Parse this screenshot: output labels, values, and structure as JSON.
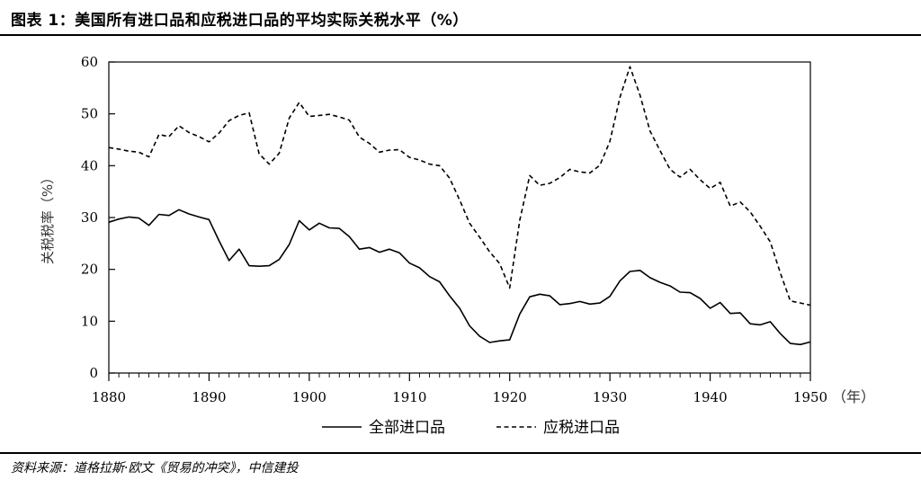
{
  "header": {
    "title": "图表 1：美国所有进口品和应税进口品的平均实际关税水平（%）"
  },
  "footer": {
    "source": "资料来源：道格拉斯·欧文《贸易的冲突》，中信建投"
  },
  "chart_data": {
    "type": "line",
    "title": "",
    "ylabel": "关税税率（%）",
    "xlabel": "（年）",
    "xlim": [
      1880,
      1950
    ],
    "ylim": [
      0,
      60
    ],
    "xticks": [
      1880,
      1890,
      1900,
      1910,
      1920,
      1930,
      1940,
      1950
    ],
    "yticks": [
      0,
      10,
      20,
      30,
      40,
      50,
      60
    ],
    "grid": false,
    "legend_position": "bottom",
    "series": [
      {
        "name": "全部进口品",
        "style": "solid",
        "color": "#000000",
        "points": [
          [
            1880,
            29.1
          ],
          [
            1881,
            29.7
          ],
          [
            1882,
            30.1
          ],
          [
            1883,
            29.9
          ],
          [
            1884,
            28.5
          ],
          [
            1885,
            30.6
          ],
          [
            1886,
            30.4
          ],
          [
            1887,
            31.5
          ],
          [
            1888,
            30.7
          ],
          [
            1889,
            30.1
          ],
          [
            1890,
            29.6
          ],
          [
            1891,
            25.5
          ],
          [
            1892,
            21.7
          ],
          [
            1893,
            23.9
          ],
          [
            1894,
            20.7
          ],
          [
            1895,
            20.6
          ],
          [
            1896,
            20.7
          ],
          [
            1897,
            21.9
          ],
          [
            1898,
            24.8
          ],
          [
            1899,
            29.4
          ],
          [
            1900,
            27.6
          ],
          [
            1901,
            28.9
          ],
          [
            1902,
            28.0
          ],
          [
            1903,
            27.9
          ],
          [
            1904,
            26.3
          ],
          [
            1905,
            23.9
          ],
          [
            1906,
            24.2
          ],
          [
            1907,
            23.3
          ],
          [
            1908,
            23.9
          ],
          [
            1909,
            23.2
          ],
          [
            1910,
            21.2
          ],
          [
            1911,
            20.3
          ],
          [
            1912,
            18.6
          ],
          [
            1913,
            17.6
          ],
          [
            1914,
            14.9
          ],
          [
            1915,
            12.5
          ],
          [
            1916,
            9.1
          ],
          [
            1917,
            7.1
          ],
          [
            1918,
            5.9
          ],
          [
            1919,
            6.2
          ],
          [
            1920,
            6.4
          ],
          [
            1921,
            11.4
          ],
          [
            1922,
            14.7
          ],
          [
            1923,
            15.2
          ],
          [
            1924,
            14.9
          ],
          [
            1925,
            13.2
          ],
          [
            1926,
            13.4
          ],
          [
            1927,
            13.8
          ],
          [
            1928,
            13.3
          ],
          [
            1929,
            13.5
          ],
          [
            1930,
            14.8
          ],
          [
            1931,
            17.8
          ],
          [
            1932,
            19.6
          ],
          [
            1933,
            19.8
          ],
          [
            1934,
            18.4
          ],
          [
            1935,
            17.5
          ],
          [
            1936,
            16.8
          ],
          [
            1937,
            15.6
          ],
          [
            1938,
            15.5
          ],
          [
            1939,
            14.4
          ],
          [
            1940,
            12.5
          ],
          [
            1941,
            13.6
          ],
          [
            1942,
            11.5
          ],
          [
            1943,
            11.6
          ],
          [
            1944,
            9.5
          ],
          [
            1945,
            9.3
          ],
          [
            1946,
            9.9
          ],
          [
            1947,
            7.6
          ],
          [
            1948,
            5.7
          ],
          [
            1949,
            5.5
          ],
          [
            1950,
            6.0
          ]
        ]
      },
      {
        "name": "应税进口品",
        "style": "dashed",
        "color": "#000000",
        "points": [
          [
            1880,
            43.5
          ],
          [
            1881,
            43.2
          ],
          [
            1882,
            42.8
          ],
          [
            1883,
            42.6
          ],
          [
            1884,
            41.7
          ],
          [
            1885,
            46.0
          ],
          [
            1886,
            45.6
          ],
          [
            1887,
            47.7
          ],
          [
            1888,
            46.4
          ],
          [
            1889,
            45.6
          ],
          [
            1890,
            44.6
          ],
          [
            1891,
            46.3
          ],
          [
            1892,
            48.7
          ],
          [
            1893,
            49.7
          ],
          [
            1894,
            50.2
          ],
          [
            1895,
            42.3
          ],
          [
            1896,
            40.3
          ],
          [
            1897,
            42.4
          ],
          [
            1898,
            49.2
          ],
          [
            1899,
            52.2
          ],
          [
            1900,
            49.5
          ],
          [
            1901,
            49.7
          ],
          [
            1902,
            49.9
          ],
          [
            1903,
            49.4
          ],
          [
            1904,
            48.8
          ],
          [
            1905,
            45.5
          ],
          [
            1906,
            44.3
          ],
          [
            1907,
            42.6
          ],
          [
            1908,
            43.0
          ],
          [
            1909,
            43.1
          ],
          [
            1910,
            41.6
          ],
          [
            1911,
            41.1
          ],
          [
            1912,
            40.3
          ],
          [
            1913,
            40.0
          ],
          [
            1914,
            37.6
          ],
          [
            1915,
            33.4
          ],
          [
            1916,
            28.9
          ],
          [
            1917,
            26.2
          ],
          [
            1918,
            23.4
          ],
          [
            1919,
            21.1
          ],
          [
            1920,
            16.4
          ],
          [
            1921,
            29.5
          ],
          [
            1922,
            38.1
          ],
          [
            1923,
            36.2
          ],
          [
            1924,
            36.6
          ],
          [
            1925,
            37.7
          ],
          [
            1926,
            39.3
          ],
          [
            1927,
            38.8
          ],
          [
            1928,
            38.6
          ],
          [
            1929,
            40.1
          ],
          [
            1930,
            44.7
          ],
          [
            1931,
            53.2
          ],
          [
            1932,
            59.1
          ],
          [
            1933,
            53.6
          ],
          [
            1934,
            46.7
          ],
          [
            1935,
            42.9
          ],
          [
            1936,
            39.3
          ],
          [
            1937,
            37.8
          ],
          [
            1938,
            39.3
          ],
          [
            1939,
            37.3
          ],
          [
            1940,
            35.6
          ],
          [
            1941,
            36.8
          ],
          [
            1942,
            32.2
          ],
          [
            1943,
            33.0
          ],
          [
            1944,
            31.1
          ],
          [
            1945,
            28.3
          ],
          [
            1946,
            25.3
          ],
          [
            1947,
            19.3
          ],
          [
            1948,
            13.9
          ],
          [
            1949,
            13.5
          ],
          [
            1950,
            13.1
          ]
        ]
      }
    ]
  }
}
